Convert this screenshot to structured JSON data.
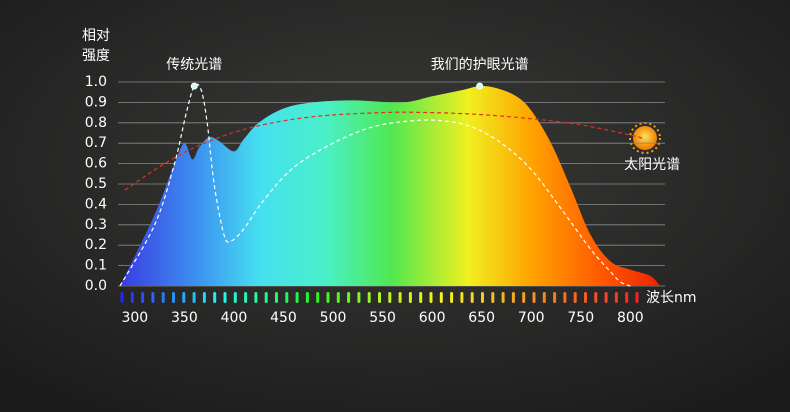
{
  "chart_data": {
    "type": "line",
    "y_label_lines": [
      "相对",
      "强度"
    ],
    "x_label": "波长nm",
    "xlim": [
      283,
      835
    ],
    "ylim": [
      0,
      1.0
    ],
    "xticks": [
      300,
      350,
      400,
      450,
      500,
      550,
      600,
      650,
      700,
      750,
      800
    ],
    "yticks": [
      {
        "value": 0,
        "label": "0.0"
      },
      0.1,
      0.2,
      0.3,
      0.4,
      0.5,
      0.6,
      0.7,
      0.8,
      0.9,
      {
        "value": 1,
        "label": "1.0"
      }
    ],
    "grid": true,
    "series": [
      {
        "name": "我们的护眼光谱",
        "fill": true,
        "x": [
          285,
          320,
          340,
          350,
          358,
          365,
          375,
          385,
          400,
          410,
          425,
          450,
          480,
          520,
          570,
          600,
          630,
          648,
          665,
          685,
          700,
          720,
          740,
          760,
          780,
          800,
          820,
          830
        ],
        "values": [
          0,
          0.35,
          0.6,
          0.7,
          0.62,
          0.68,
          0.73,
          0.71,
          0.66,
          0.72,
          0.8,
          0.87,
          0.9,
          0.91,
          0.9,
          0.93,
          0.96,
          0.98,
          0.97,
          0.93,
          0.86,
          0.7,
          0.48,
          0.25,
          0.12,
          0.08,
          0.05,
          0
        ]
      },
      {
        "name": "传统光谱",
        "color": "#ffffff",
        "dashed": true,
        "x": [
          285,
          320,
          340,
          352,
          360,
          367,
          373,
          380,
          390,
          397,
          410,
          430,
          460,
          500,
          540,
          580,
          610,
          640,
          670,
          700,
          730,
          760,
          780,
          790,
          800
        ],
        "values": [
          0,
          0.3,
          0.6,
          0.85,
          0.98,
          0.96,
          0.8,
          0.5,
          0.25,
          0.22,
          0.28,
          0.42,
          0.58,
          0.7,
          0.78,
          0.81,
          0.81,
          0.78,
          0.7,
          0.57,
          0.38,
          0.18,
          0.07,
          0.02,
          0
        ]
      },
      {
        "name": "太阳光谱",
        "color": "#e03020",
        "dashed": true,
        "x": [
          290,
          330,
          370,
          420,
          480,
          550,
          600,
          650,
          700,
          750,
          800,
          815
        ],
        "values": [
          0.47,
          0.6,
          0.7,
          0.78,
          0.83,
          0.85,
          0.85,
          0.84,
          0.82,
          0.79,
          0.74,
          0.72
        ]
      }
    ]
  }
}
